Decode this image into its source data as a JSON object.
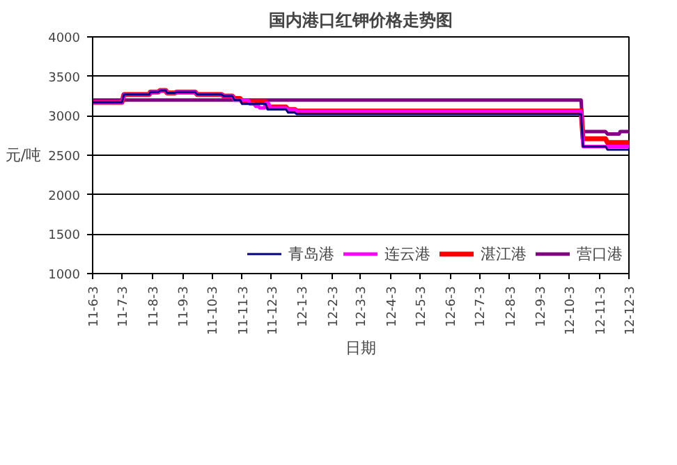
{
  "chart_data": {
    "type": "line",
    "title": "国内港口红钾价格走势图",
    "ylabel": "元/吨",
    "xlabel": "日期",
    "xlim": [
      "2011-06-03",
      "2012-12-03"
    ],
    "ylim": [
      1000,
      4000
    ],
    "yticks": [
      1000,
      1500,
      2000,
      2500,
      3000,
      3500,
      4000
    ],
    "xticks": [
      {
        "value": "2011-06-03",
        "label": "11-6-3"
      },
      {
        "value": "2011-07-03",
        "label": "11-7-3"
      },
      {
        "value": "2011-08-03",
        "label": "11-8-3"
      },
      {
        "value": "2011-09-03",
        "label": "11-9-3"
      },
      {
        "value": "2011-10-03",
        "label": "11-10-3"
      },
      {
        "value": "2011-11-03",
        "label": "11-11-3"
      },
      {
        "value": "2011-12-03",
        "label": "11-12-3"
      },
      {
        "value": "2012-01-03",
        "label": "12-1-3"
      },
      {
        "value": "2012-02-03",
        "label": "12-2-3"
      },
      {
        "value": "2012-03-03",
        "label": "12-3-3"
      },
      {
        "value": "2012-04-03",
        "label": "12-4-3"
      },
      {
        "value": "2012-05-03",
        "label": "12-5-3"
      },
      {
        "value": "2012-06-03",
        "label": "12-6-3"
      },
      {
        "value": "2012-07-03",
        "label": "12-7-3"
      },
      {
        "value": "2012-08-03",
        "label": "12-8-3"
      },
      {
        "value": "2012-09-03",
        "label": "12-9-3"
      },
      {
        "value": "2012-10-03",
        "label": "12-10-3"
      },
      {
        "value": "2012-11-03",
        "label": "12-11-3"
      },
      {
        "value": "2012-12-03",
        "label": "12-12-3"
      }
    ],
    "grid": "y",
    "legend": "bottom right",
    "line_style": "solid",
    "marker": "none",
    "series": [
      {
        "name": "青岛港",
        "color": "#000080",
        "x": [
          "2011-06-03",
          "2011-07-03",
          "2011-07-05",
          "2011-07-31",
          "2011-08-01",
          "2011-08-09",
          "2011-08-11",
          "2011-08-17",
          "2011-08-18",
          "2011-08-26",
          "2011-08-28",
          "2011-09-16",
          "2011-09-18",
          "2011-10-13",
          "2011-10-15",
          "2011-10-24",
          "2011-10-26",
          "2011-11-01",
          "2011-11-03",
          "2011-11-27",
          "2011-11-29",
          "2011-12-18",
          "2011-12-20",
          "2011-12-27",
          "2011-12-29",
          "2012-10-15",
          "2012-10-17",
          "2012-11-09",
          "2012-11-11",
          "2012-12-03"
        ],
        "values": [
          3170,
          3170,
          3270,
          3270,
          3300,
          3300,
          3320,
          3320,
          3290,
          3290,
          3300,
          3300,
          3270,
          3270,
          3250,
          3250,
          3200,
          3200,
          3150,
          3150,
          3080,
          3080,
          3040,
          3040,
          3020,
          3020,
          2610,
          2610,
          2570,
          2570
        ]
      },
      {
        "name": "连云港",
        "color": "#ff00ff",
        "x": [
          "2011-06-03",
          "2011-07-03",
          "2011-07-05",
          "2011-07-31",
          "2011-08-01",
          "2011-08-09",
          "2011-08-11",
          "2011-08-17",
          "2011-08-18",
          "2011-08-26",
          "2011-08-28",
          "2011-09-16",
          "2011-09-18",
          "2011-10-13",
          "2011-10-15",
          "2011-10-24",
          "2011-10-26",
          "2011-11-09",
          "2011-11-11",
          "2011-11-15",
          "2011-11-17",
          "2011-11-20",
          "2011-11-21",
          "2011-11-26",
          "2011-11-27",
          "2011-11-30",
          "2011-12-02",
          "2011-12-18",
          "2011-12-20",
          "2011-12-27",
          "2011-12-29",
          "2012-10-15",
          "2012-10-17",
          "2012-12-03"
        ],
        "values": [
          3170,
          3170,
          3270,
          3270,
          3300,
          3300,
          3320,
          3320,
          3290,
          3290,
          3300,
          3300,
          3270,
          3270,
          3250,
          3250,
          3200,
          3200,
          3150,
          3150,
          3120,
          3120,
          3100,
          3100,
          3160,
          3160,
          3100,
          3100,
          3080,
          3080,
          3060,
          3060,
          2610,
          2610
        ]
      },
      {
        "name": "湛江港",
        "color": "#ff0000",
        "x": [
          "2011-06-03",
          "2011-07-03",
          "2011-07-05",
          "2011-07-31",
          "2011-08-01",
          "2011-08-09",
          "2011-08-11",
          "2011-08-17",
          "2011-08-18",
          "2011-08-26",
          "2011-08-28",
          "2011-09-16",
          "2011-09-18",
          "2011-10-13",
          "2011-10-15",
          "2011-10-24",
          "2011-10-26",
          "2011-11-01",
          "2011-11-03",
          "2011-11-27",
          "2011-11-29",
          "2011-12-18",
          "2011-12-20",
          "2011-12-27",
          "2011-12-29",
          "2012-10-15",
          "2012-10-17",
          "2012-11-09",
          "2012-11-11",
          "2012-12-03"
        ],
        "values": [
          3170,
          3170,
          3270,
          3270,
          3300,
          3300,
          3320,
          3320,
          3290,
          3290,
          3300,
          3300,
          3270,
          3270,
          3250,
          3250,
          3220,
          3220,
          3180,
          3180,
          3110,
          3110,
          3080,
          3080,
          3060,
          3060,
          2710,
          2710,
          2660,
          2660
        ]
      },
      {
        "name": "营口港",
        "color": "#800080",
        "x": [
          "2011-06-03",
          "2012-10-15",
          "2012-10-17",
          "2012-11-09",
          "2012-11-11",
          "2012-11-23",
          "2012-11-24",
          "2012-12-03"
        ],
        "values": [
          3200,
          3200,
          2800,
          2800,
          2770,
          2770,
          2800,
          2800
        ]
      }
    ]
  }
}
